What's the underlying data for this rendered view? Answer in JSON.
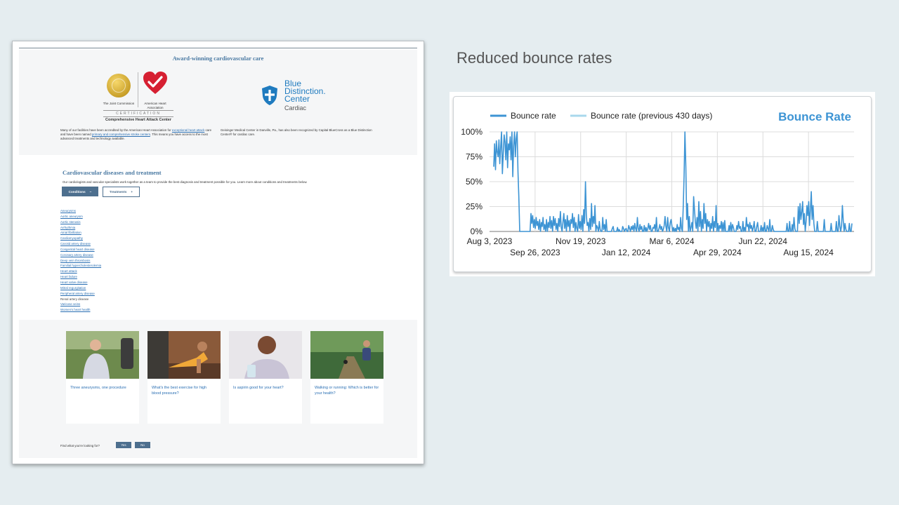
{
  "website": {
    "award_title": "Award-winning cardiovascular care",
    "logos": {
      "joint_commission": "The Joint Commission",
      "aha": "American Heart Association",
      "certification": "CERTIFICATION",
      "certification_sub": "Comprehensive Heart Attack Center",
      "bd_line1": "Blue",
      "bd_line2": "Distinction.",
      "bd_line3": "Center",
      "bd_line4": "Cardiac"
    },
    "accreditation": {
      "part1": "Many of our facilities have been accredited by the American Heart Association for ",
      "link1": "exceptional heart attack",
      "part2": " care and have been named ",
      "link2": "primary and comprehensive stroke centers",
      "part3": ". This means you have access to the most advanced treatments and technology available."
    },
    "blue_distinction_text": "Geisinger Medical Center in Danville, Pa., has also been recognized by Capital BlueCross as a Blue Distinction Center® for cardiac care.",
    "section_title": "Cardiovascular diseases and treatment",
    "section_desc": "Our cardiologists and vascular specialists work together as a team to provide the best diagnosis and treatment possible for you. Learn more about conditions and treatments below.",
    "tabs": {
      "conditions": "Conditions",
      "conditions_sign": "−",
      "treatments": "Treatments",
      "treatments_sign": "+"
    },
    "conditions": [
      {
        "label": "Aneurysms",
        "link": true
      },
      {
        "label": "Aortic aneurysm",
        "link": true
      },
      {
        "label": "Aortic stenosis",
        "link": true
      },
      {
        "label": "Arrhythmia",
        "link": true
      },
      {
        "label": "Atrial fibrillation",
        "link": true
      },
      {
        "label": "Cardiomyopathy",
        "link": true
      },
      {
        "label": "Carotid artery disease",
        "link": true
      },
      {
        "label": "Congenital heart disease",
        "link": true
      },
      {
        "label": "Coronary artery disease",
        "link": true
      },
      {
        "label": "Deep vein thrombosis",
        "link": true
      },
      {
        "label": "Familial hypercholesterolemia",
        "link": true
      },
      {
        "label": "Heart attack",
        "link": true
      },
      {
        "label": "Heart failure",
        "link": true
      },
      {
        "label": "Heart valve disease",
        "link": true
      },
      {
        "label": "Mitral regurgitation",
        "link": true
      },
      {
        "label": "Peripheral artery disease",
        "link": true
      },
      {
        "label": "Renal artery disease",
        "link": false
      },
      {
        "label": "Varicose veins",
        "link": true
      },
      {
        "label": "Women's heart health",
        "link": true
      }
    ],
    "cards": [
      {
        "title": "Three aneurysms, one procedure"
      },
      {
        "title": "What's the best exercise for high blood pressure?"
      },
      {
        "title": "Is aspirin good for your heart?"
      },
      {
        "title": "Walking or running: Which is better for your health?"
      }
    ],
    "feedback": {
      "question": "Find what you're looking for?",
      "yes": "Yes",
      "no": "No"
    }
  },
  "slide": {
    "heading": "Reduced bounce rates"
  },
  "chart_data": {
    "type": "line",
    "title": "Bounce Rate",
    "legend": [
      "Bounce rate",
      "Bounce rate (previous 430 days)"
    ],
    "legend_placement": "top-left",
    "colors": {
      "current": "#3d94d4",
      "previous": "#a8d8ec",
      "title": "#3d94d4"
    },
    "y_ticks": [
      "0%",
      "25%",
      "50%",
      "75%",
      "100%"
    ],
    "ylim": [
      0,
      100
    ],
    "grid": true,
    "x_ticks_row1": [
      "Aug 3, 2023",
      "Nov 19, 2023",
      "Mar 6, 2024",
      "Jun 22, 2024"
    ],
    "x_ticks_row2": [
      "Sep 26, 2023",
      "Jan 12, 2024",
      "Apr 29, 2024",
      "Aug 15, 2024"
    ],
    "series": [
      {
        "name": "Bounce rate",
        "values": [
          65,
          88,
          62,
          91,
          80,
          75,
          92,
          68,
          85,
          100,
          58,
          79,
          97,
          90,
          72,
          100,
          64,
          88,
          82,
          95,
          72,
          100,
          55,
          86,
          100,
          75,
          93,
          100,
          60,
          35,
          0,
          0,
          0,
          0,
          0,
          0,
          0,
          0,
          0,
          0,
          0,
          0,
          0,
          18,
          8,
          16,
          4,
          12,
          3,
          14,
          6,
          10,
          2,
          12,
          0,
          9,
          5,
          14,
          2,
          7,
          0,
          12,
          0,
          9,
          4,
          15,
          3,
          11,
          0,
          15,
          6,
          13,
          2,
          8,
          0,
          13,
          5,
          20,
          4,
          0,
          10,
          18,
          3,
          12,
          0,
          16,
          5,
          11,
          0,
          12,
          8,
          18,
          4,
          14,
          0,
          9,
          3,
          0,
          17,
          3,
          10,
          2,
          16,
          0,
          22,
          8,
          50,
          17,
          6,
          9,
          0,
          13,
          2,
          28,
          5,
          15,
          8,
          26,
          0,
          6,
          4,
          0,
          10,
          2,
          0,
          0,
          14,
          2,
          7,
          0,
          12,
          0,
          0,
          0,
          0,
          0,
          0,
          3,
          5,
          0,
          0,
          0,
          0,
          4,
          0,
          2,
          0,
          0,
          0,
          5,
          3,
          0,
          2,
          3,
          0,
          0,
          6,
          3,
          0,
          5,
          2,
          6,
          0,
          8,
          3,
          0,
          14,
          3,
          0,
          7,
          2,
          5,
          0,
          0,
          6,
          0,
          4,
          0,
          3,
          8,
          2,
          6,
          0,
          0,
          4,
          3,
          7,
          0,
          14,
          0,
          0,
          3,
          7,
          2,
          5,
          0,
          2,
          6,
          15,
          5,
          0,
          14,
          4,
          0,
          9,
          12,
          5,
          0,
          4,
          0,
          3,
          0,
          7,
          2,
          4,
          0,
          14,
          3,
          0,
          25,
          55,
          100,
          65,
          12,
          28,
          0,
          15,
          0,
          4,
          9,
          0,
          35,
          22,
          10,
          3,
          14,
          0,
          30,
          5,
          20,
          0,
          12,
          3,
          28,
          8,
          18,
          0,
          12,
          5,
          10,
          0,
          8,
          3,
          15,
          0,
          10,
          4,
          26,
          0,
          8,
          0,
          6,
          3,
          10,
          0,
          9,
          0,
          11,
          0,
          0,
          0,
          0,
          6,
          0,
          9,
          0,
          7,
          4,
          0,
          0,
          0,
          6,
          2,
          10,
          3,
          5,
          0,
          0,
          10,
          0,
          4,
          0,
          14,
          5,
          7,
          0,
          9,
          3,
          6,
          0,
          4,
          10,
          0,
          0,
          5,
          9,
          0,
          0,
          0,
          6,
          0,
          4,
          0,
          9,
          0,
          0,
          6,
          3,
          0,
          12,
          0,
          0,
          6,
          2,
          0,
          0,
          0,
          0,
          0,
          0,
          0,
          0,
          0,
          0,
          0,
          0,
          0,
          0,
          0,
          8,
          0,
          0,
          10,
          0,
          0,
          7,
          0,
          14,
          3,
          0,
          0,
          0,
          25,
          8,
          28,
          12,
          20,
          30,
          7,
          18,
          0,
          10,
          26,
          16,
          30,
          6,
          22,
          40,
          12,
          26,
          8,
          0,
          0,
          0,
          10,
          0,
          0,
          0,
          0,
          0,
          0,
          0,
          12,
          0,
          0,
          0,
          0,
          0,
          0,
          0,
          8,
          0,
          0,
          0,
          0,
          0,
          10,
          0,
          0,
          16,
          5,
          0,
          6,
          26,
          10,
          0,
          8,
          2,
          0,
          0,
          0,
          8,
          0,
          0,
          8
        ]
      },
      {
        "name": "Bounce rate (previous 430 days)",
        "values": []
      }
    ]
  }
}
